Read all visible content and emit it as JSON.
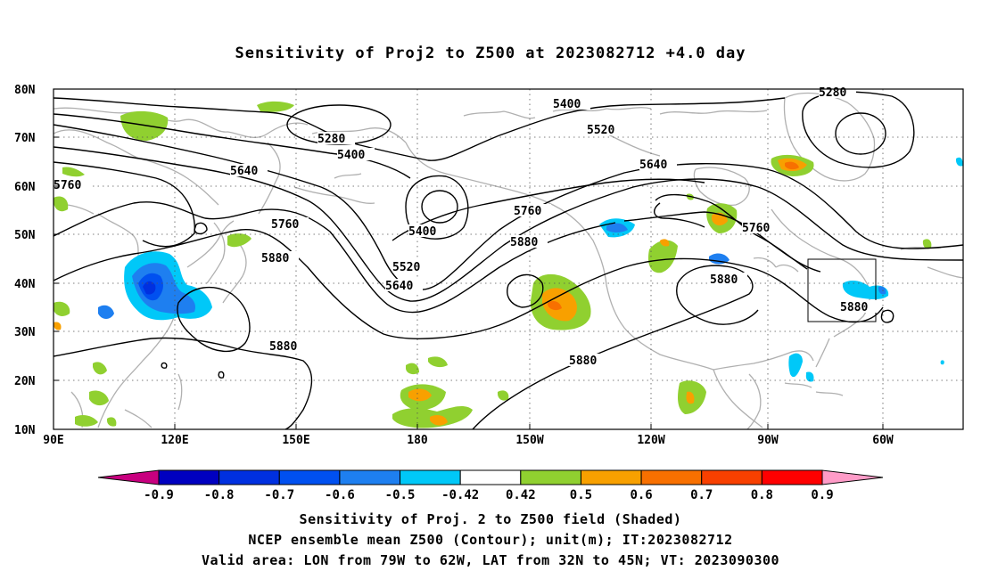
{
  "title": "Sensitivity of Proj2 to Z500 at 2023082712 +4.0 day",
  "lat_labels": [
    "80N",
    "70N",
    "60N",
    "50N",
    "40N",
    "30N",
    "20N",
    "10N"
  ],
  "lon_labels": [
    "90E",
    "120E",
    "150E",
    "180",
    "150W",
    "120W",
    "90W",
    "60W"
  ],
  "contour_labels": [
    {
      "text": "5280",
      "id": "c5280a"
    },
    {
      "text": "5400",
      "id": "c5400a"
    },
    {
      "text": "5640",
      "id": "c5640a"
    },
    {
      "text": "5760",
      "id": "c5760a"
    },
    {
      "text": "5880",
      "id": "c5880a"
    },
    {
      "text": "5760",
      "id": "c5760b"
    },
    {
      "text": "5880",
      "id": "c5880b"
    },
    {
      "text": "5400",
      "id": "c5400b"
    },
    {
      "text": "5520",
      "id": "c5520a"
    },
    {
      "text": "5640",
      "id": "c5640b"
    },
    {
      "text": "5400",
      "id": "c5400c"
    },
    {
      "text": "5520",
      "id": "c5520b"
    },
    {
      "text": "5760",
      "id": "c5760c"
    },
    {
      "text": "5880",
      "id": "c5880c"
    },
    {
      "text": "5640",
      "id": "c5640c"
    },
    {
      "text": "5880",
      "id": "c5880d"
    },
    {
      "text": "5880",
      "id": "c5880e"
    },
    {
      "text": "5280",
      "id": "c5280b"
    },
    {
      "text": "5760",
      "id": "c5760d"
    },
    {
      "text": "5880",
      "id": "c5880f"
    }
  ],
  "colorbar": {
    "labels": [
      "-0.9",
      "-0.8",
      "-0.7",
      "-0.6",
      "-0.5",
      "-0.42",
      "0.42",
      "0.5",
      "0.6",
      "0.7",
      "0.8",
      "0.9"
    ],
    "colors": [
      "#c8007f",
      "#0000c0",
      "#0030e0",
      "#0050f0",
      "#1e7ff0",
      "#00c8f8",
      "#ffffff",
      "#90d030",
      "#f8a000",
      "#f87000",
      "#f84000",
      "#ff0000",
      "#ff9cc8"
    ]
  },
  "valid_box": {
    "lon_min": "79W",
    "lon_max": "62W",
    "lat_min": "32N",
    "lat_max": "45N"
  },
  "captions": {
    "line1": "Sensitivity of Proj. 2 to Z500 field (Shaded)",
    "line2": "NCEP ensemble mean Z500 (Contour); unit(m); IT:2023082712",
    "line3": "Valid area: LON from 79W to 62W, LAT from 32N to 45N; VT: 2023090300"
  }
}
